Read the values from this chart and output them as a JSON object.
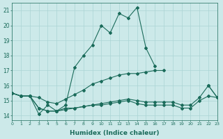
{
  "xlabel": "Humidex (Indice chaleur)",
  "ylabel": "",
  "xlim": [
    0,
    23
  ],
  "ylim": [
    13.7,
    21.5
  ],
  "yticks": [
    14,
    15,
    16,
    17,
    18,
    19,
    20,
    21
  ],
  "xticks": [
    0,
    1,
    2,
    3,
    4,
    5,
    6,
    7,
    8,
    9,
    10,
    11,
    12,
    13,
    14,
    15,
    16,
    17,
    18,
    19,
    20,
    21,
    22,
    23
  ],
  "bg_color": "#cce9e9",
  "grid_color": "#aad4d4",
  "line_color": "#1a6b5a",
  "line1": [
    15.5,
    15.3,
    15.3,
    14.1,
    14.7,
    14.3,
    14.7,
    17.2,
    18.0,
    18.7,
    20.0,
    19.5,
    20.8,
    20.5,
    21.2,
    18.5,
    17.3,
    null,
    null,
    null,
    null,
    null,
    16.0,
    15.2
  ],
  "line2": [
    15.5,
    15.3,
    15.3,
    15.2,
    14.9,
    14.8,
    15.1,
    15.4,
    15.7,
    16.1,
    16.3,
    16.5,
    16.7,
    16.8,
    16.8,
    16.9,
    17.0,
    17.0,
    null,
    null,
    null,
    null,
    null,
    null
  ],
  "line3": [
    15.5,
    15.3,
    15.3,
    14.5,
    14.3,
    14.3,
    14.4,
    14.5,
    14.6,
    14.7,
    14.7,
    14.8,
    14.9,
    15.0,
    14.8,
    14.7,
    14.7,
    14.7,
    14.7,
    14.5,
    14.5,
    15.0,
    15.3,
    15.2
  ],
  "line4": [
    15.5,
    15.3,
    15.3,
    14.5,
    14.3,
    14.3,
    14.5,
    14.5,
    14.6,
    14.7,
    14.8,
    14.9,
    15.0,
    15.1,
    15.0,
    14.9,
    14.9,
    14.9,
    14.9,
    14.7,
    14.7,
    15.2,
    16.0,
    15.2
  ]
}
